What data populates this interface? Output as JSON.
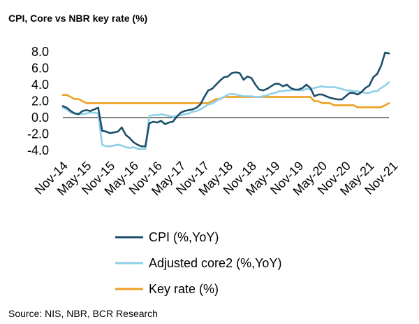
{
  "chart_data": {
    "type": "line",
    "title": "CPI, Core vs NBR key rate (%)",
    "source": "Source: NIS, NBR, BCR Research",
    "x_start": "Nov-14",
    "x_tick_labels": [
      "Nov-14",
      "May-15",
      "Nov-15",
      "May-16",
      "Nov-16",
      "May-17",
      "Nov-17",
      "May-18",
      "Nov-18",
      "May-19",
      "Nov-19",
      "May-20",
      "Nov-20",
      "May-21",
      "Nov-21"
    ],
    "ylim": [
      -4.0,
      8.0
    ],
    "y_ticks": [
      "8.0",
      "6.0",
      "4.0",
      "2.0",
      "0.0",
      "-2.0",
      "-4.0"
    ],
    "legend_position": "bottom",
    "series": [
      {
        "name": "CPI (%,YoY)",
        "color": "#1b4e6b",
        "values": [
          1.4,
          1.2,
          0.8,
          0.5,
          0.4,
          0.8,
          0.9,
          0.8,
          1.0,
          1.2,
          -1.6,
          -1.7,
          -1.9,
          -1.8,
          -1.7,
          -1.2,
          -2.1,
          -2.5,
          -3.0,
          -3.3,
          -3.5,
          -3.5,
          -0.7,
          -0.5,
          -0.6,
          -0.4,
          -0.8,
          -0.6,
          -0.5,
          0.1,
          0.6,
          0.8,
          0.9,
          1.0,
          1.2,
          1.6,
          2.5,
          3.3,
          3.5,
          4.0,
          4.5,
          4.9,
          5.0,
          5.4,
          5.5,
          5.4,
          4.6,
          5.0,
          4.8,
          4.0,
          3.4,
          3.3,
          3.5,
          3.8,
          4.1,
          4.1,
          3.8,
          4.0,
          3.6,
          3.4,
          3.4,
          3.6,
          4.0,
          3.6,
          2.6,
          2.8,
          2.8,
          2.6,
          2.4,
          2.3,
          2.2,
          2.2,
          2.6,
          3.0,
          3.0,
          2.8,
          3.1,
          3.6,
          3.9,
          4.9,
          5.3,
          6.3,
          7.9,
          7.8
        ]
      },
      {
        "name": "Adjusted core2 (%,YoY)",
        "color": "#8fcfe8",
        "values": [
          1.2,
          1.0,
          0.6,
          0.5,
          0.5,
          0.4,
          0.5,
          0.6,
          0.6,
          0.5,
          -3.3,
          -3.5,
          -3.5,
          -3.4,
          -3.3,
          -3.4,
          -3.6,
          -3.7,
          -3.6,
          -3.8,
          -3.8,
          -3.8,
          0.2,
          0.3,
          0.3,
          0.4,
          0.3,
          0.2,
          0.1,
          0.2,
          0.3,
          0.4,
          0.5,
          0.7,
          0.8,
          1.0,
          1.3,
          1.6,
          1.7,
          2.0,
          2.3,
          2.5,
          2.8,
          2.9,
          2.8,
          2.7,
          2.6,
          2.6,
          2.6,
          2.5,
          2.5,
          2.6,
          2.7,
          2.9,
          3.0,
          3.2,
          3.2,
          3.3,
          3.3,
          3.4,
          3.3,
          3.3,
          3.5,
          3.4,
          3.6,
          3.7,
          3.8,
          3.7,
          3.7,
          3.7,
          3.6,
          3.5,
          3.3,
          3.3,
          3.2,
          3.2,
          3.1,
          3.0,
          3.0,
          3.2,
          3.2,
          3.6,
          3.9,
          4.3
        ]
      },
      {
        "name": "Key rate (%)",
        "color": "#ee9f22",
        "values": [
          2.75,
          2.75,
          2.5,
          2.25,
          2.25,
          2.0,
          1.75,
          1.75,
          1.75,
          1.75,
          1.75,
          1.75,
          1.75,
          1.75,
          1.75,
          1.75,
          1.75,
          1.75,
          1.75,
          1.75,
          1.75,
          1.75,
          1.75,
          1.75,
          1.75,
          1.75,
          1.75,
          1.75,
          1.75,
          1.75,
          1.75,
          1.75,
          1.75,
          1.75,
          1.75,
          1.75,
          1.75,
          1.75,
          2.0,
          2.25,
          2.25,
          2.5,
          2.5,
          2.5,
          2.5,
          2.5,
          2.5,
          2.5,
          2.5,
          2.5,
          2.5,
          2.5,
          2.5,
          2.5,
          2.5,
          2.5,
          2.5,
          2.5,
          2.5,
          2.5,
          2.5,
          2.5,
          2.5,
          2.5,
          2.0,
          2.0,
          1.75,
          1.75,
          1.75,
          1.5,
          1.5,
          1.5,
          1.5,
          1.5,
          1.5,
          1.25,
          1.25,
          1.25,
          1.25,
          1.25,
          1.25,
          1.25,
          1.5,
          1.75
        ]
      }
    ]
  }
}
